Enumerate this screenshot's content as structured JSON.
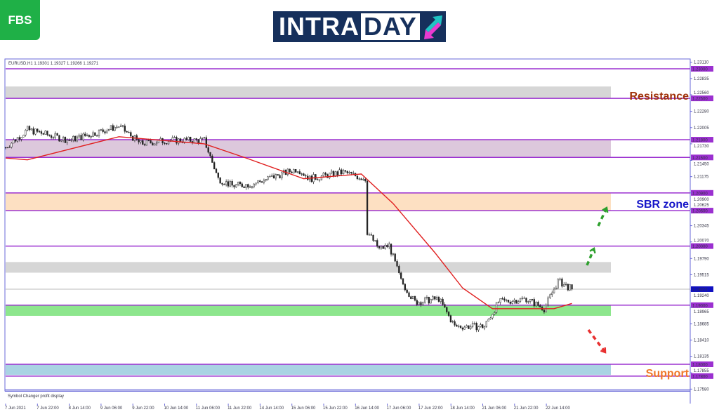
{
  "brand": {
    "logo_text": "FBS",
    "banner_left": "INTRA",
    "banner_right": "DAY"
  },
  "chart_header": "EURUSD,H1  1.19301 1.19327 1.19266 1.19271",
  "indicator_label": "Symbol Changer profit display",
  "chart_data": {
    "type": "candlestick",
    "symbol": "EURUSD",
    "timeframe": "H1",
    "ohlc_last": {
      "open": 1.19301,
      "high": 1.19327,
      "low": 1.19266,
      "close": 1.19271
    },
    "ylim": [
      1.1745,
      1.2318
    ],
    "y_ticks": [
      "1.23110",
      "1.22835",
      "1.22560",
      "1.22280",
      "1.22005",
      "1.21730",
      "1.21450",
      "1.21175",
      "1.20900",
      "1.20625",
      "1.20345",
      "1.20070",
      "1.19790",
      "1.19515",
      "1.19240",
      "1.18965",
      "1.18685",
      "1.18410",
      "1.18135",
      "1.17855",
      "1.17580"
    ],
    "x_ticks": [
      "7 Jun 2021",
      "7 Jun 22:00",
      "8 Jun 14:00",
      "9 Jun 06:00",
      "9 Jun 22:00",
      "10 Jun 14:00",
      "11 Jun 06:00",
      "11 Jun 22:00",
      "14 Jun 14:00",
      "15 Jun 06:00",
      "15 Jun 22:00",
      "16 Jun 14:00",
      "17 Jun 06:00",
      "17 Jun 22:00",
      "18 Jun 14:00",
      "21 Jun 06:00",
      "21 Jun 22:00",
      "22 Jun 14:00"
    ],
    "price_path_bar_price": [
      [
        0,
        1.2167
      ],
      [
        11,
        1.2197
      ],
      [
        32,
        1.2179
      ],
      [
        57,
        1.2203
      ],
      [
        68,
        1.2173
      ],
      [
        82,
        1.2179
      ],
      [
        100,
        1.2179
      ],
      [
        107,
        1.2114
      ],
      [
        114,
        1.2102
      ],
      [
        124,
        1.2105
      ],
      [
        147,
        1.2131
      ],
      [
        153,
        1.2114
      ],
      [
        170,
        1.2125
      ],
      [
        181,
        1.2114
      ],
      [
        182,
        1.2024
      ],
      [
        188,
        1.1995
      ],
      [
        193,
        1.2001
      ],
      [
        199,
        1.1941
      ],
      [
        206,
        1.1905
      ],
      [
        218,
        1.1911
      ],
      [
        226,
        1.1864
      ],
      [
        241,
        1.1864
      ],
      [
        248,
        1.1905
      ],
      [
        262,
        1.1911
      ],
      [
        271,
        1.1894
      ],
      [
        278,
        1.1941
      ],
      [
        285,
        1.19271
      ]
    ],
    "moving_average": [
      [
        0,
        1.2149
      ],
      [
        11,
        1.2146
      ],
      [
        57,
        1.2185
      ],
      [
        100,
        1.2173
      ],
      [
        121,
        1.2149
      ],
      [
        150,
        1.2114
      ],
      [
        179,
        1.2122
      ],
      [
        195,
        1.2072
      ],
      [
        216,
        1.1989
      ],
      [
        230,
        1.1929
      ],
      [
        245,
        1.1894
      ],
      [
        266,
        1.1894
      ],
      [
        276,
        1.1894
      ],
      [
        285,
        1.1903
      ]
    ],
    "levels": [
      "1.23000",
      "1.22500",
      "1.21800",
      "1.21500",
      "1.20900",
      "1.20600",
      "1.20000",
      "1.19000",
      "1.18000",
      "1.17800"
    ],
    "current_price": "1.19271",
    "zones": [
      {
        "from": 1.225,
        "to": 1.227,
        "color": "#d6d6d6"
      },
      {
        "from": 1.215,
        "to": 1.218,
        "color": "#dcc8dc"
      },
      {
        "from": 1.206,
        "to": 1.209,
        "color": "#fde0c2"
      },
      {
        "from": 1.1955,
        "to": 1.1973,
        "color": "#d6d6d6"
      },
      {
        "from": 1.1882,
        "to": 1.19,
        "color": "#8de68d"
      },
      {
        "from": 1.1782,
        "to": 1.18,
        "color": "#a9d3e3"
      }
    ],
    "annotations": [
      {
        "text": "Resistance",
        "price": 1.2255,
        "color": "#a0320a"
      },
      {
        "text": "SBR zone",
        "price": 1.2072,
        "color": "#1414c8"
      },
      {
        "text": "Support",
        "price": 1.1786,
        "color": "#f07828"
      }
    ],
    "arrows": [
      {
        "direction": "up",
        "color": "#2ea02e"
      },
      {
        "direction": "up",
        "color": "#2ea02e"
      },
      {
        "direction": "down",
        "color": "#e83030"
      }
    ],
    "colors": {
      "level_line": "#9b30d0",
      "ma": "#e02020",
      "axis": "#6a6ad8",
      "current_price_bg": "#1010c0"
    }
  }
}
